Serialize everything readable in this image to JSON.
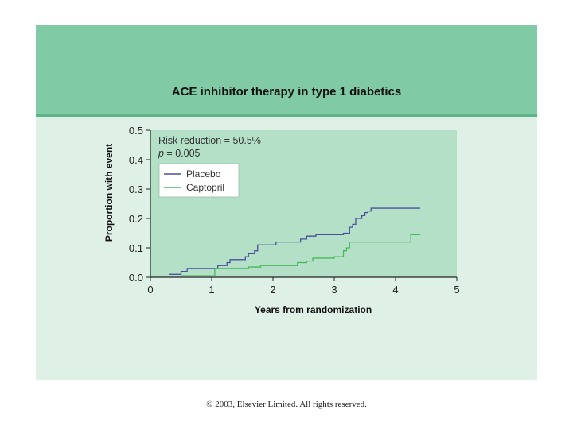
{
  "slide_title": "ACE inhibitor therapy in type 1 diabetics",
  "copyright": "© 2003, Elsevier Limited. All rights reserved.",
  "colors": {
    "header": "#80cba5",
    "slide_bg": "#dff1e6",
    "plot_bg": "#b3e0c6",
    "placebo": "#4a4f9e",
    "captopril": "#46b85a"
  },
  "chart_data": {
    "type": "line",
    "step": true,
    "xlabel": "Years from randomization",
    "ylabel": "Proportion with event",
    "xlim": [
      0,
      5
    ],
    "ylim": [
      0,
      0.5
    ],
    "xticks": [
      "0",
      "1",
      "2",
      "3",
      "4",
      "5"
    ],
    "yticks": [
      "0.0",
      "0.1",
      "0.2",
      "0.3",
      "0.4",
      "0.5"
    ],
    "annotations": [
      "Risk reduction = 50.5%",
      "p = 0.005"
    ],
    "legend_position": "top-left",
    "series": [
      {
        "name": "Placebo",
        "x": [
          0.3,
          0.5,
          0.6,
          0.8,
          1.1,
          1.25,
          1.3,
          1.4,
          1.55,
          1.6,
          1.7,
          1.75,
          1.95,
          2.05,
          2.3,
          2.45,
          2.55,
          2.7,
          3.05,
          3.15,
          3.25,
          3.3,
          3.35,
          3.45,
          3.5,
          3.55,
          3.6,
          3.7,
          4.4
        ],
        "y": [
          0.01,
          0.02,
          0.03,
          0.03,
          0.04,
          0.05,
          0.06,
          0.06,
          0.07,
          0.08,
          0.09,
          0.11,
          0.11,
          0.12,
          0.12,
          0.13,
          0.14,
          0.145,
          0.145,
          0.15,
          0.17,
          0.18,
          0.2,
          0.21,
          0.22,
          0.225,
          0.235,
          0.235,
          0.235
        ]
      },
      {
        "name": "Captopril",
        "x": [
          0.5,
          1.05,
          1.6,
          1.8,
          2.05,
          2.4,
          2.55,
          2.65,
          2.9,
          3.0,
          3.15,
          3.2,
          3.25,
          4.25,
          4.4
        ],
        "y": [
          0.005,
          0.03,
          0.035,
          0.04,
          0.04,
          0.05,
          0.055,
          0.065,
          0.065,
          0.07,
          0.09,
          0.1,
          0.12,
          0.145,
          0.145
        ]
      }
    ]
  }
}
